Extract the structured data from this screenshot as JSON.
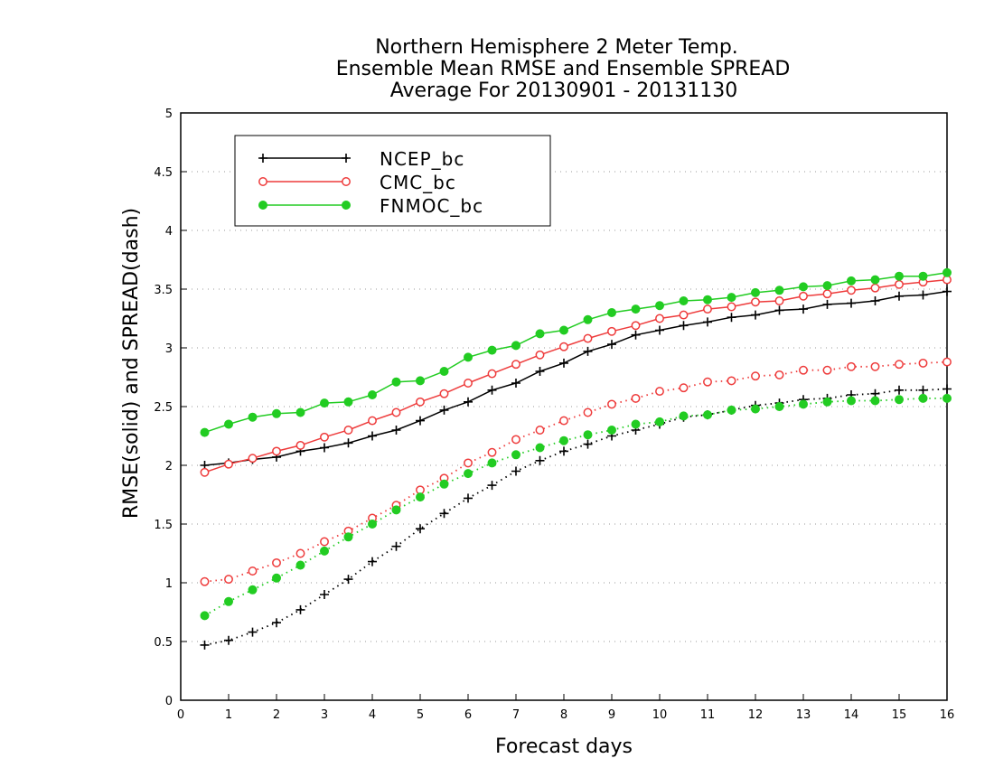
{
  "chart_data": {
    "type": "line",
    "title": [
      "Northern Hemisphere 2 Meter Temp.",
      "Ensemble Mean RMSE and Ensemble SPREAD",
      "Average For 20130901 - 20131130"
    ],
    "xlabel": "Forecast days",
    "ylabel": "RMSE(solid) and SPREAD(dash)",
    "xlim": [
      0,
      16
    ],
    "ylim": [
      0,
      5
    ],
    "x_ticks": [
      "0",
      "1",
      "2",
      "3",
      "4",
      "5",
      "6",
      "7",
      "8",
      "9",
      "10",
      "11",
      "12",
      "13",
      "14",
      "15",
      "16"
    ],
    "y_ticks": [
      "0",
      "0.5",
      "1",
      "1.5",
      "2",
      "2.5",
      "3",
      "3.5",
      "4",
      "4.5",
      "5"
    ],
    "grid": "dotted horizontal",
    "legend_position": "top-left",
    "x": [
      0.5,
      1,
      1.5,
      2,
      2.5,
      3,
      3.5,
      4,
      4.5,
      5,
      5.5,
      6,
      6.5,
      7,
      7.5,
      8,
      8.5,
      9,
      9.5,
      10,
      10.5,
      11,
      11.5,
      12,
      12.5,
      13,
      13.5,
      14,
      14.5,
      15,
      15.5,
      16
    ],
    "series": [
      {
        "name": "NCEP_bc",
        "color": "#000000",
        "marker": "plus",
        "rmse": [
          2.0,
          2.02,
          2.05,
          2.07,
          2.12,
          2.15,
          2.19,
          2.25,
          2.3,
          2.38,
          2.47,
          2.54,
          2.64,
          2.7,
          2.8,
          2.87,
          2.97,
          3.03,
          3.11,
          3.15,
          3.19,
          3.22,
          3.26,
          3.28,
          3.32,
          3.33,
          3.37,
          3.38,
          3.4,
          3.44,
          3.45,
          3.48
        ],
        "spread": [
          0.47,
          0.51,
          0.58,
          0.66,
          0.77,
          0.9,
          1.03,
          1.18,
          1.31,
          1.46,
          1.59,
          1.72,
          1.83,
          1.95,
          2.04,
          2.12,
          2.18,
          2.25,
          2.3,
          2.35,
          2.41,
          2.43,
          2.47,
          2.51,
          2.53,
          2.56,
          2.57,
          2.6,
          2.61,
          2.64,
          2.64,
          2.65
        ]
      },
      {
        "name": "CMC_bc",
        "color": "#ee3b3b",
        "marker": "open-circle",
        "rmse": [
          1.94,
          2.01,
          2.06,
          2.12,
          2.17,
          2.24,
          2.3,
          2.38,
          2.45,
          2.54,
          2.61,
          2.7,
          2.78,
          2.86,
          2.94,
          3.01,
          3.08,
          3.14,
          3.19,
          3.25,
          3.28,
          3.33,
          3.35,
          3.39,
          3.4,
          3.44,
          3.46,
          3.49,
          3.51,
          3.54,
          3.56,
          3.58
        ],
        "spread": [
          1.01,
          1.03,
          1.1,
          1.17,
          1.25,
          1.35,
          1.44,
          1.55,
          1.66,
          1.79,
          1.89,
          2.02,
          2.11,
          2.22,
          2.3,
          2.38,
          2.45,
          2.52,
          2.57,
          2.63,
          2.66,
          2.71,
          2.72,
          2.76,
          2.77,
          2.81,
          2.81,
          2.84,
          2.84,
          2.86,
          2.87,
          2.88
        ]
      },
      {
        "name": "FNMOC_bc",
        "color": "#22cc22",
        "marker": "filled-circle",
        "rmse": [
          2.28,
          2.35,
          2.41,
          2.44,
          2.45,
          2.53,
          2.54,
          2.6,
          2.71,
          2.72,
          2.8,
          2.92,
          2.98,
          3.02,
          3.12,
          3.15,
          3.24,
          3.3,
          3.33,
          3.36,
          3.4,
          3.41,
          3.43,
          3.47,
          3.49,
          3.52,
          3.53,
          3.57,
          3.58,
          3.61,
          3.61,
          3.64
        ],
        "spread": [
          0.72,
          0.84,
          0.94,
          1.04,
          1.15,
          1.27,
          1.39,
          1.5,
          1.62,
          1.73,
          1.84,
          1.93,
          2.02,
          2.09,
          2.15,
          2.21,
          2.26,
          2.3,
          2.35,
          2.37,
          2.42,
          2.43,
          2.47,
          2.48,
          2.5,
          2.52,
          2.54,
          2.55,
          2.55,
          2.56,
          2.57,
          2.57
        ]
      }
    ]
  }
}
